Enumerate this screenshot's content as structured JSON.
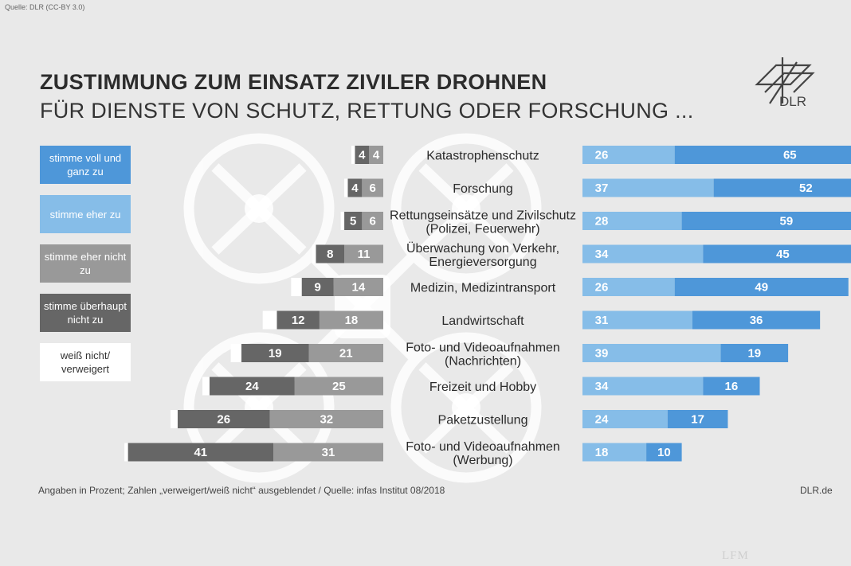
{
  "source": "Quelle: DLR (CC-BY 3.0)",
  "title": "ZUSTIMMUNG ZUM EINSATZ ZIVILER DROHNEN",
  "subtitle": "FÜR DIENSTE VON SCHUTZ, RETTUNG ODER FORSCHUNG ...",
  "logo_text": "DLR",
  "legend": [
    {
      "label": "stimme voll und ganz zu",
      "color": "#4e97d9",
      "text_color": "#ffffff"
    },
    {
      "label": "stimme eher zu",
      "color": "#86bde8",
      "text_color": "#ffffff"
    },
    {
      "label": "stimme eher nicht zu",
      "color": "#999999",
      "text_color": "#ffffff"
    },
    {
      "label": "stimme überhaupt nicht zu",
      "color": "#666666",
      "text_color": "#ffffff"
    },
    {
      "label": "weiß nicht/ verweigert",
      "color": "#ffffff",
      "text_color": "#333333"
    }
  ],
  "footer": "Angaben in Prozent; Zahlen „verweigert/weiß nicht“ ausgeblendet / Quelle: infas Institut 08/2018",
  "footer_right": "DLR.de",
  "watermark": "LFM",
  "chart_data": {
    "type": "bar",
    "categories": [
      [
        "Katastrophenschutz"
      ],
      [
        "Forschung"
      ],
      [
        "Rettungseinsätze und Zivilschutz",
        "(Polizei, Feuerwehr)"
      ],
      [
        "Überwachung von Verkehr,",
        "Energieversorgung"
      ],
      [
        "Medizin, Medizintransport"
      ],
      [
        "Landwirtschaft"
      ],
      [
        "Foto- und Videoaufnahmen",
        "(Nachrichten)"
      ],
      [
        "Freizeit und Hobby"
      ],
      [
        "Paketzustellung"
      ],
      [
        "Foto- und Videoaufnahmen",
        "(Werbung)"
      ]
    ],
    "series": [
      {
        "name": "stimme voll und ganz zu",
        "values": [
          65,
          52,
          59,
          45,
          49,
          36,
          19,
          16,
          17,
          10
        ]
      },
      {
        "name": "stimme eher zu",
        "values": [
          26,
          37,
          28,
          34,
          26,
          31,
          39,
          34,
          24,
          18
        ]
      },
      {
        "name": "stimme eher nicht zu",
        "values": [
          4,
          6,
          6,
          11,
          14,
          18,
          21,
          25,
          32,
          31
        ]
      },
      {
        "name": "stimme überhaupt nicht zu",
        "values": [
          4,
          4,
          5,
          8,
          9,
          12,
          19,
          24,
          26,
          41
        ]
      },
      {
        "name": "weiß nicht/ verweigert",
        "values": [
          1,
          1,
          1,
          1,
          3,
          4,
          3,
          2,
          2,
          1
        ]
      }
    ],
    "colors": {
      "voll": "#4e97d9",
      "eher": "#86bde8",
      "eher_nicht": "#999999",
      "ueberhaupt_nicht": "#666666",
      "weiss_nicht": "#ffffff"
    }
  }
}
